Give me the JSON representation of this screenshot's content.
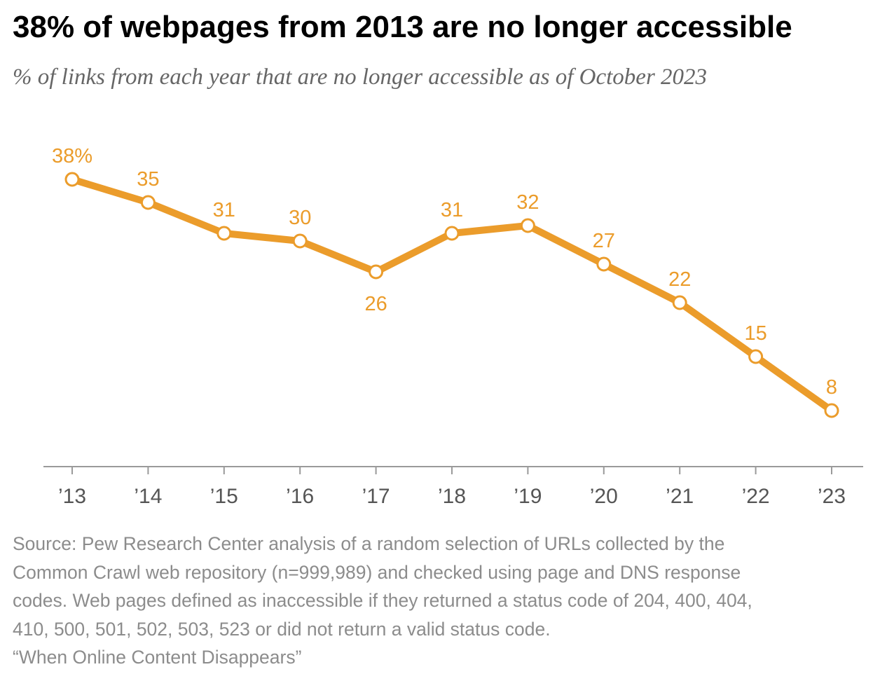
{
  "title": "38% of webpages from 2013 are no longer accessible",
  "subtitle": "% of links from each year that are no longer accessible as of October 2023",
  "chart_data": {
    "type": "line",
    "categories": [
      "’13",
      "’14",
      "’15",
      "’16",
      "’17",
      "’18",
      "’19",
      "’20",
      "’21",
      "’22",
      "’23"
    ],
    "values": [
      38,
      35,
      31,
      30,
      26,
      31,
      32,
      27,
      22,
      15,
      8
    ],
    "data_labels": [
      "38%",
      "35",
      "31",
      "30",
      "26",
      "31",
      "32",
      "27",
      "22",
      "15",
      "8"
    ],
    "label_position": [
      "above",
      "above",
      "above",
      "above",
      "below",
      "above",
      "above",
      "above",
      "above",
      "above",
      "above"
    ],
    "ylim": [
      0,
      40
    ],
    "grid": false,
    "color": "#EB9C2B",
    "marker_fill": "#ffffff"
  },
  "source": {
    "lines": [
      "Source: Pew Research Center analysis of a random selection of URLs collected by the",
      "Common Crawl web repository (n=999,989) and checked using page and DNS response",
      "codes. Web pages defined as inaccessible if they returned a status code of 204, 400, 404,",
      "410, 500, 501, 502, 503, 523 or did not return a valid status code.",
      "“When Online Content Disappears”"
    ]
  }
}
